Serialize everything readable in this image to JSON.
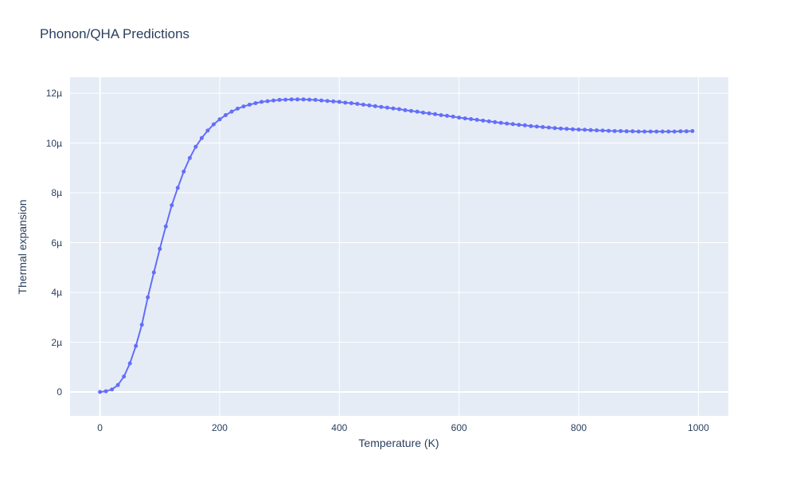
{
  "chart_data": {
    "type": "line",
    "title": "Phonon/QHA Predictions",
    "xlabel": "Temperature (K)",
    "ylabel": "Thermal expansion",
    "y_unit": "µ",
    "grid": true,
    "legend": false,
    "xlim": [
      -50,
      1050
    ],
    "ylim": [
      -0.96,
      12.64
    ],
    "xticks": {
      "values": [
        0,
        200,
        400,
        600,
        800,
        1000
      ],
      "labels": [
        "0",
        "200",
        "400",
        "600",
        "800",
        "1000"
      ]
    },
    "yticks": {
      "values": [
        0,
        2,
        4,
        6,
        8,
        10,
        12
      ],
      "labels": [
        "0",
        "2µ",
        "4µ",
        "6µ",
        "8µ",
        "10µ",
        "12µ"
      ]
    },
    "colors": {
      "line": "#636efa",
      "marker": "#636efa",
      "plot_bg": "#e5ecf6",
      "grid": "#ffffff",
      "text": "#2a3f5f",
      "paper_bg": "#ffffff"
    },
    "marker_size": 5,
    "line_width": 2,
    "x": [
      0,
      10,
      20,
      30,
      40,
      50,
      60,
      70,
      80,
      90,
      100,
      110,
      120,
      130,
      140,
      150,
      160,
      170,
      180,
      190,
      200,
      210,
      220,
      230,
      240,
      250,
      260,
      270,
      280,
      290,
      300,
      310,
      320,
      330,
      340,
      350,
      360,
      370,
      380,
      390,
      400,
      410,
      420,
      430,
      440,
      450,
      460,
      470,
      480,
      490,
      500,
      510,
      520,
      530,
      540,
      550,
      560,
      570,
      580,
      590,
      600,
      610,
      620,
      630,
      640,
      650,
      660,
      670,
      680,
      690,
      700,
      710,
      720,
      730,
      740,
      750,
      760,
      770,
      780,
      790,
      800,
      810,
      820,
      830,
      840,
      850,
      860,
      870,
      880,
      890,
      900,
      910,
      920,
      930,
      940,
      950,
      960,
      970,
      980,
      990
    ],
    "y": [
      0.0,
      0.03,
      0.1,
      0.28,
      0.62,
      1.15,
      1.85,
      2.7,
      3.8,
      4.8,
      5.75,
      6.65,
      7.5,
      8.2,
      8.85,
      9.4,
      9.85,
      10.2,
      10.5,
      10.75,
      10.95,
      11.12,
      11.26,
      11.38,
      11.47,
      11.54,
      11.6,
      11.65,
      11.68,
      11.71,
      11.73,
      11.74,
      11.75,
      11.75,
      11.75,
      11.74,
      11.73,
      11.71,
      11.69,
      11.67,
      11.65,
      11.62,
      11.6,
      11.57,
      11.54,
      11.51,
      11.48,
      11.45,
      11.42,
      11.39,
      11.36,
      11.32,
      11.29,
      11.26,
      11.22,
      11.19,
      11.16,
      11.12,
      11.09,
      11.06,
      11.02,
      10.99,
      10.96,
      10.93,
      10.9,
      10.87,
      10.84,
      10.81,
      10.78,
      10.76,
      10.73,
      10.71,
      10.68,
      10.66,
      10.64,
      10.62,
      10.6,
      10.58,
      10.57,
      10.55,
      10.54,
      10.53,
      10.52,
      10.51,
      10.5,
      10.49,
      10.48,
      10.48,
      10.47,
      10.47,
      10.46,
      10.46,
      10.46,
      10.46,
      10.46,
      10.46,
      10.46,
      10.47,
      10.47,
      10.48
    ]
  }
}
